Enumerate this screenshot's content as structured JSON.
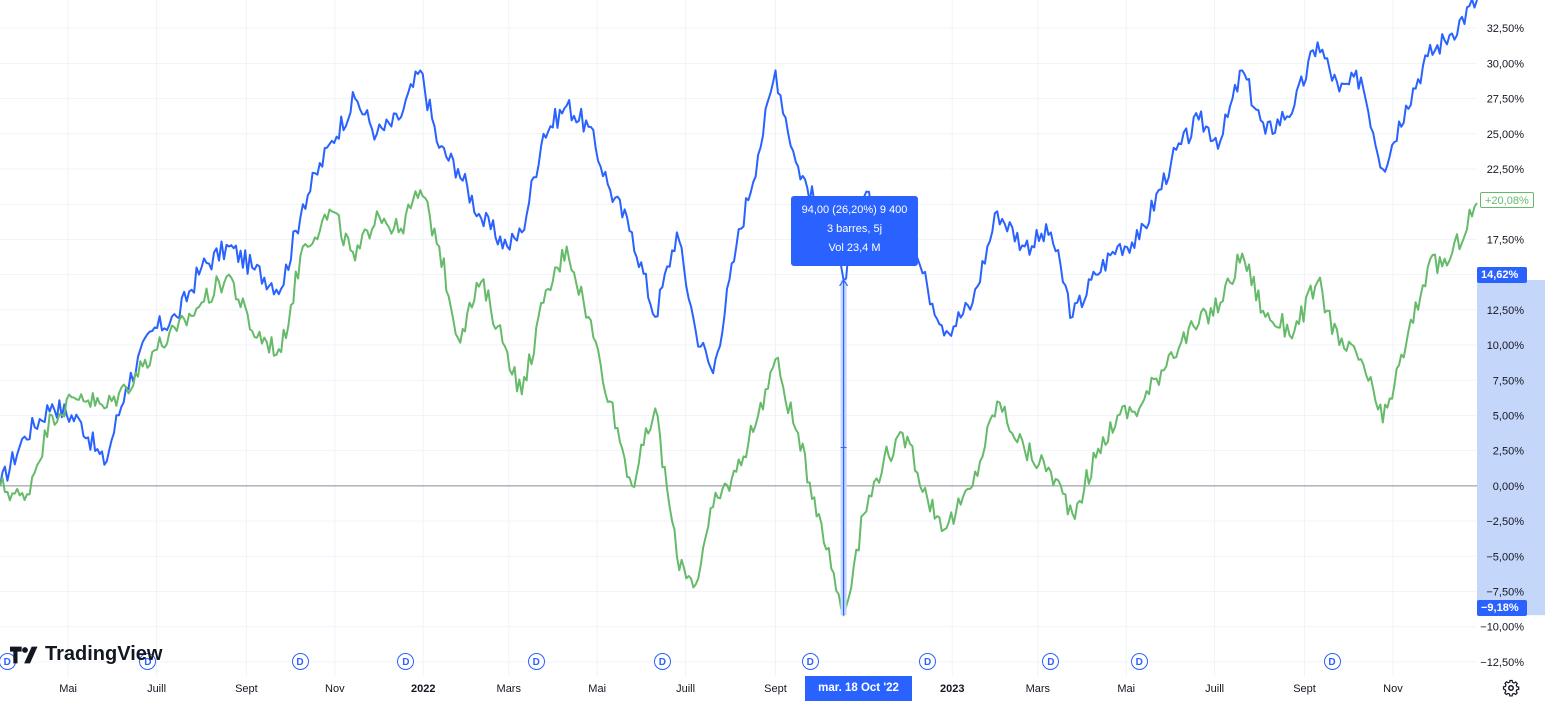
{
  "brand": {
    "name": "TradingView",
    "logo_icon": "tradingview-logo-icon"
  },
  "tooltip": {
    "line1": "94,00 (26,20%) 9 400",
    "line2": "3 barres, 5j",
    "line3": "Vol 23,4 M"
  },
  "crosshair_date": "mar. 18 Oct '22",
  "price_badges": {
    "series_green": "+20,08%",
    "range_top": "14,62%",
    "range_bottom": "−9,18%"
  },
  "dividend_marker": "D",
  "settings_icon": "gear-icon",
  "colors": {
    "series_blue": "#2962ff",
    "series_green": "#66bb6a",
    "zero_line": "#8a8f99",
    "grid": "#f0f3fa",
    "measure_fill": "#c5d6fb",
    "accent": "#2962ff"
  },
  "chart_data": {
    "type": "line",
    "x_axis": {
      "type": "date",
      "range": [
        "2021-03-15",
        "2023-12-29"
      ],
      "tick_labels": [
        {
          "date": "2021-05-01",
          "label": "Mai"
        },
        {
          "date": "2021-07-01",
          "label": "Juill"
        },
        {
          "date": "2021-09-01",
          "label": "Sept"
        },
        {
          "date": "2021-11-01",
          "label": "Nov"
        },
        {
          "date": "2022-01-01",
          "label": "2022",
          "year": true
        },
        {
          "date": "2022-03-01",
          "label": "Mars"
        },
        {
          "date": "2022-05-01",
          "label": "Mai"
        },
        {
          "date": "2022-07-01",
          "label": "Juill"
        },
        {
          "date": "2022-09-01",
          "label": "Sept"
        },
        {
          "date": "2023-01-01",
          "label": "2023",
          "year": true
        },
        {
          "date": "2023-03-01",
          "label": "Mars"
        },
        {
          "date": "2023-05-01",
          "label": "Mai"
        },
        {
          "date": "2023-07-01",
          "label": "Juill"
        },
        {
          "date": "2023-09-01",
          "label": "Sept"
        },
        {
          "date": "2023-11-01",
          "label": "Nov"
        }
      ]
    },
    "y_axis": {
      "unit": "%",
      "range": [
        -13.5,
        34.5
      ],
      "tick_values": [
        32.5,
        30,
        27.5,
        25,
        22.5,
        20,
        17.5,
        15,
        12.5,
        10,
        7.5,
        5,
        2.5,
        0,
        -2.5,
        -5,
        -7.5,
        -10,
        -12.5
      ],
      "tick_labels": [
        "32,50%",
        "30,00%",
        "27,50%",
        "25,00%",
        "22,50%",
        "",
        "17,50%",
        "",
        "12,50%",
        "10,00%",
        "7,50%",
        "5,00%",
        "2,50%",
        "0,00%",
        "−2,50%",
        "−5,00%",
        "−7,50%",
        "−10,00%",
        "−12,50%"
      ]
    },
    "grid": true,
    "zero_line": 0,
    "series": [
      {
        "color": "#2962ff",
        "points": [
          [
            "2021-03-15",
            0
          ],
          [
            "2021-04-01",
            3.5
          ],
          [
            "2021-04-20",
            5.8
          ],
          [
            "2021-05-10",
            4.5
          ],
          [
            "2021-05-26",
            1.5
          ],
          [
            "2021-06-10",
            7
          ],
          [
            "2021-06-28",
            11
          ],
          [
            "2021-07-15",
            12
          ],
          [
            "2021-08-01",
            15.5
          ],
          [
            "2021-08-20",
            17
          ],
          [
            "2021-09-05",
            15.5
          ],
          [
            "2021-09-25",
            14
          ],
          [
            "2021-10-10",
            20
          ],
          [
            "2021-10-30",
            24.5
          ],
          [
            "2021-11-15",
            27.5
          ],
          [
            "2021-11-30",
            25
          ],
          [
            "2021-12-15",
            26
          ],
          [
            "2021-12-30",
            29.5
          ],
          [
            "2022-01-12",
            24
          ],
          [
            "2022-01-25",
            22.5
          ],
          [
            "2022-02-10",
            19
          ],
          [
            "2022-02-28",
            17
          ],
          [
            "2022-03-10",
            18
          ],
          [
            "2022-03-25",
            25
          ],
          [
            "2022-04-10",
            27
          ],
          [
            "2022-04-25",
            25.5
          ],
          [
            "2022-05-10",
            21
          ],
          [
            "2022-05-25",
            18
          ],
          [
            "2022-06-10",
            12
          ],
          [
            "2022-06-25",
            18
          ],
          [
            "2022-07-08",
            11
          ],
          [
            "2022-07-20",
            8
          ],
          [
            "2022-08-05",
            17
          ],
          [
            "2022-08-20",
            23.5
          ],
          [
            "2022-09-01",
            29.5
          ],
          [
            "2022-09-15",
            23
          ],
          [
            "2022-10-01",
            19.5
          ],
          [
            "2022-10-18",
            14.6
          ],
          [
            "2022-11-01",
            20.5
          ],
          [
            "2022-11-15",
            19
          ],
          [
            "2022-12-01",
            18.5
          ],
          [
            "2022-12-15",
            14
          ],
          [
            "2022-12-28",
            11
          ],
          [
            "2023-01-15",
            13
          ],
          [
            "2023-02-01",
            19.5
          ],
          [
            "2023-02-20",
            17
          ],
          [
            "2023-03-10",
            18
          ],
          [
            "2023-03-25",
            12
          ],
          [
            "2023-04-10",
            15
          ],
          [
            "2023-04-25",
            17
          ],
          [
            "2023-05-10",
            17.5
          ],
          [
            "2023-06-01",
            23
          ],
          [
            "2023-06-20",
            26
          ],
          [
            "2023-07-05",
            24.5
          ],
          [
            "2023-07-20",
            29.5
          ],
          [
            "2023-08-05",
            25
          ],
          [
            "2023-08-25",
            27
          ],
          [
            "2023-09-10",
            31.5
          ],
          [
            "2023-09-25",
            28
          ],
          [
            "2023-10-10",
            29
          ],
          [
            "2023-10-25",
            22.5
          ],
          [
            "2023-11-10",
            27
          ],
          [
            "2023-11-25",
            30.5
          ],
          [
            "2023-12-10",
            32
          ],
          [
            "2023-12-29",
            34.5
          ]
        ]
      },
      {
        "color": "#66bb6a",
        "points": [
          [
            "2021-03-15",
            0
          ],
          [
            "2021-04-01",
            -1
          ],
          [
            "2021-04-20",
            5
          ],
          [
            "2021-05-10",
            6.5
          ],
          [
            "2021-05-26",
            5.5
          ],
          [
            "2021-06-10",
            7
          ],
          [
            "2021-06-28",
            9.5
          ],
          [
            "2021-07-15",
            11
          ],
          [
            "2021-08-01",
            13
          ],
          [
            "2021-08-20",
            15
          ],
          [
            "2021-09-05",
            11
          ],
          [
            "2021-09-25",
            9.5
          ],
          [
            "2021-10-10",
            17
          ],
          [
            "2021-10-30",
            19.5
          ],
          [
            "2021-11-15",
            16
          ],
          [
            "2021-11-30",
            19.5
          ],
          [
            "2021-12-15",
            18
          ],
          [
            "2021-12-30",
            21
          ],
          [
            "2022-01-12",
            17
          ],
          [
            "2022-01-25",
            10.5
          ],
          [
            "2022-02-10",
            14.5
          ],
          [
            "2022-02-28",
            9.5
          ],
          [
            "2022-03-10",
            6.5
          ],
          [
            "2022-03-25",
            13
          ],
          [
            "2022-04-10",
            17
          ],
          [
            "2022-04-25",
            12
          ],
          [
            "2022-05-10",
            6
          ],
          [
            "2022-05-25",
            0
          ],
          [
            "2022-06-10",
            5.5
          ],
          [
            "2022-06-25",
            -5
          ],
          [
            "2022-07-08",
            -7
          ],
          [
            "2022-07-20",
            -1.5
          ],
          [
            "2022-08-05",
            1
          ],
          [
            "2022-08-20",
            5
          ],
          [
            "2022-09-01",
            9
          ],
          [
            "2022-09-15",
            4
          ],
          [
            "2022-10-01",
            -2
          ],
          [
            "2022-10-18",
            -9.2
          ],
          [
            "2022-11-01",
            -2
          ],
          [
            "2022-11-15",
            2
          ],
          [
            "2022-12-01",
            3.5
          ],
          [
            "2022-12-15",
            -1
          ],
          [
            "2022-12-28",
            -3
          ],
          [
            "2023-01-15",
            0
          ],
          [
            "2023-02-01",
            6
          ],
          [
            "2023-02-20",
            2.5
          ],
          [
            "2023-03-10",
            1
          ],
          [
            "2023-03-25",
            -2
          ],
          [
            "2023-04-10",
            2
          ],
          [
            "2023-04-25",
            5
          ],
          [
            "2023-05-10",
            5.5
          ],
          [
            "2023-06-01",
            9.5
          ],
          [
            "2023-06-20",
            11.5
          ],
          [
            "2023-07-05",
            13
          ],
          [
            "2023-07-20",
            16.5
          ],
          [
            "2023-08-05",
            12
          ],
          [
            "2023-08-25",
            11
          ],
          [
            "2023-09-10",
            14.5
          ],
          [
            "2023-09-25",
            10
          ],
          [
            "2023-10-10",
            9
          ],
          [
            "2023-10-25",
            4.5
          ],
          [
            "2023-11-10",
            10
          ],
          [
            "2023-11-25",
            15.5
          ],
          [
            "2023-12-10",
            16
          ],
          [
            "2023-12-29",
            20.08
          ]
        ]
      }
    ],
    "measurement": {
      "date": "2022-10-18",
      "from": -9.18,
      "to": 14.62
    },
    "dividend_dates": [
      "2021-03-20",
      "2021-06-25",
      "2021-10-08",
      "2021-12-20",
      "2022-03-20",
      "2022-06-15",
      "2022-09-25",
      "2022-12-15",
      "2023-03-10",
      "2023-05-10",
      "2023-09-20"
    ]
  }
}
